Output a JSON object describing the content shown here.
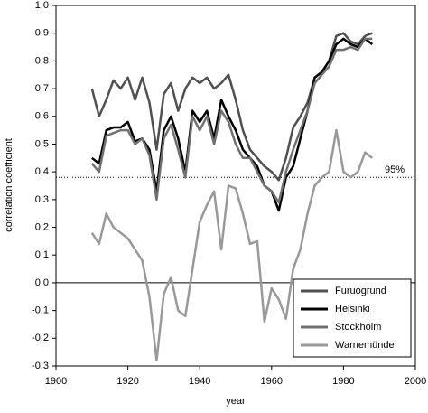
{
  "chart_data": {
    "type": "line",
    "x_label": "year",
    "y_label": "correlation coefficient",
    "x": [
      1910,
      1912,
      1914,
      1916,
      1918,
      1920,
      1922,
      1924,
      1926,
      1928,
      1930,
      1932,
      1934,
      1936,
      1938,
      1940,
      1942,
      1944,
      1946,
      1948,
      1950,
      1952,
      1954,
      1956,
      1958,
      1960,
      1962,
      1964,
      1966,
      1968,
      1970,
      1972,
      1974,
      1976,
      1978,
      1980,
      1982,
      1984,
      1986,
      1988
    ],
    "series": [
      {
        "name": "Furuogrund",
        "color": "#505050",
        "values": [
          0.7,
          0.6,
          0.66,
          0.73,
          0.7,
          0.74,
          0.66,
          0.74,
          0.65,
          0.48,
          0.68,
          0.72,
          0.62,
          0.7,
          0.74,
          0.72,
          0.74,
          0.7,
          0.72,
          0.75,
          0.66,
          0.55,
          0.48,
          0.45,
          0.42,
          0.4,
          0.37,
          0.45,
          0.56,
          0.6,
          0.65,
          0.74,
          0.76,
          0.8,
          0.89,
          0.9,
          0.87,
          0.86,
          0.89,
          0.9
        ]
      },
      {
        "name": "Helsinki",
        "color": "#000000",
        "values": [
          0.45,
          0.43,
          0.55,
          0.56,
          0.56,
          0.58,
          0.51,
          0.52,
          0.48,
          0.33,
          0.55,
          0.6,
          0.52,
          0.4,
          0.62,
          0.58,
          0.62,
          0.52,
          0.66,
          0.6,
          0.55,
          0.48,
          0.45,
          0.42,
          0.35,
          0.33,
          0.26,
          0.38,
          0.42,
          0.52,
          0.62,
          0.74,
          0.76,
          0.8,
          0.86,
          0.88,
          0.86,
          0.85,
          0.88,
          0.86
        ]
      },
      {
        "name": "Stockholm",
        "color": "#707070",
        "values": [
          0.43,
          0.4,
          0.53,
          0.54,
          0.55,
          0.55,
          0.5,
          0.52,
          0.46,
          0.3,
          0.52,
          0.57,
          0.48,
          0.38,
          0.6,
          0.55,
          0.6,
          0.5,
          0.62,
          0.58,
          0.5,
          0.45,
          0.45,
          0.4,
          0.35,
          0.33,
          0.29,
          0.4,
          0.48,
          0.55,
          0.62,
          0.72,
          0.75,
          0.78,
          0.84,
          0.84,
          0.85,
          0.84,
          0.88,
          0.88
        ]
      },
      {
        "name": "Warnemünde",
        "color": "#999999",
        "values": [
          0.18,
          0.14,
          0.25,
          0.2,
          0.18,
          0.16,
          0.12,
          0.08,
          -0.05,
          -0.28,
          -0.04,
          0.02,
          -0.1,
          -0.12,
          0.05,
          0.22,
          0.28,
          0.33,
          0.12,
          0.35,
          0.34,
          0.25,
          0.14,
          0.15,
          -0.14,
          -0.02,
          -0.06,
          -0.13,
          0.05,
          0.12,
          0.25,
          0.35,
          0.38,
          0.4,
          0.55,
          0.4,
          0.38,
          0.4,
          0.47,
          0.45
        ]
      }
    ],
    "xlim": [
      1900,
      2000
    ],
    "xticks": [
      1900,
      1920,
      1940,
      1960,
      1980,
      2000
    ],
    "ylim": [
      -0.3,
      1.0
    ],
    "yticks": [
      -0.3,
      -0.2,
      -0.1,
      {
        "value": 0,
        "label": "0.0"
      },
      0.1,
      0.2,
      0.3,
      0.4,
      0.5,
      0.6,
      0.7,
      0.8,
      0.9,
      {
        "value": 1,
        "label": "1.0"
      }
    ],
    "reference_lines": [
      {
        "value": 0.38,
        "label": "95%",
        "style": "dotted"
      },
      {
        "value": 0,
        "style": "solid"
      }
    ],
    "legend": "lower right"
  }
}
